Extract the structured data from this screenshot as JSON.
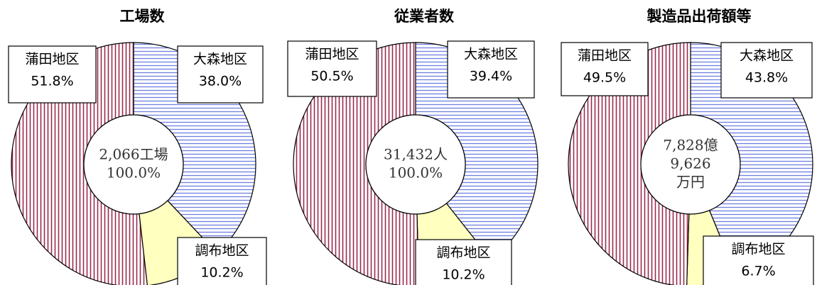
{
  "chart_data": [
    {
      "type": "pie",
      "title": "工場数",
      "categories": [
        "大森地区",
        "調布地区",
        "蒲田地区"
      ],
      "values": [
        38.0,
        10.2,
        51.8
      ],
      "value_labels": [
        "38.0%",
        "10.2%",
        "51.8%"
      ],
      "colors": [
        "#6f7fe0",
        "#ffffc0",
        "#9a2a4e"
      ],
      "patterns": [
        "horizontal",
        "solid",
        "vertical"
      ],
      "center_label": [
        "2,066工場",
        "100.0%"
      ]
    },
    {
      "type": "pie",
      "title": "従業者数",
      "categories": [
        "大森地区",
        "調布地区",
        "蒲田地区"
      ],
      "values": [
        39.4,
        10.2,
        50.5
      ],
      "value_labels": [
        "39.4%",
        "10.2%",
        "50.5%"
      ],
      "colors": [
        "#6f7fe0",
        "#ffffc0",
        "#9a2a4e"
      ],
      "patterns": [
        "horizontal",
        "solid",
        "vertical"
      ],
      "center_label": [
        "31,432人",
        "100.0%"
      ]
    },
    {
      "type": "pie",
      "title": "製造品出荷額等",
      "categories": [
        "大森地区",
        "調布地区",
        "蒲田地区"
      ],
      "values": [
        43.8,
        6.7,
        49.5
      ],
      "value_labels": [
        "43.8%",
        "6.7%",
        "49.5%"
      ],
      "colors": [
        "#6f7fe0",
        "#ffffc0",
        "#9a2a4e"
      ],
      "patterns": [
        "horizontal",
        "solid",
        "vertical"
      ],
      "center_label": [
        "7,828億",
        "9,626",
        "万円"
      ]
    }
  ]
}
